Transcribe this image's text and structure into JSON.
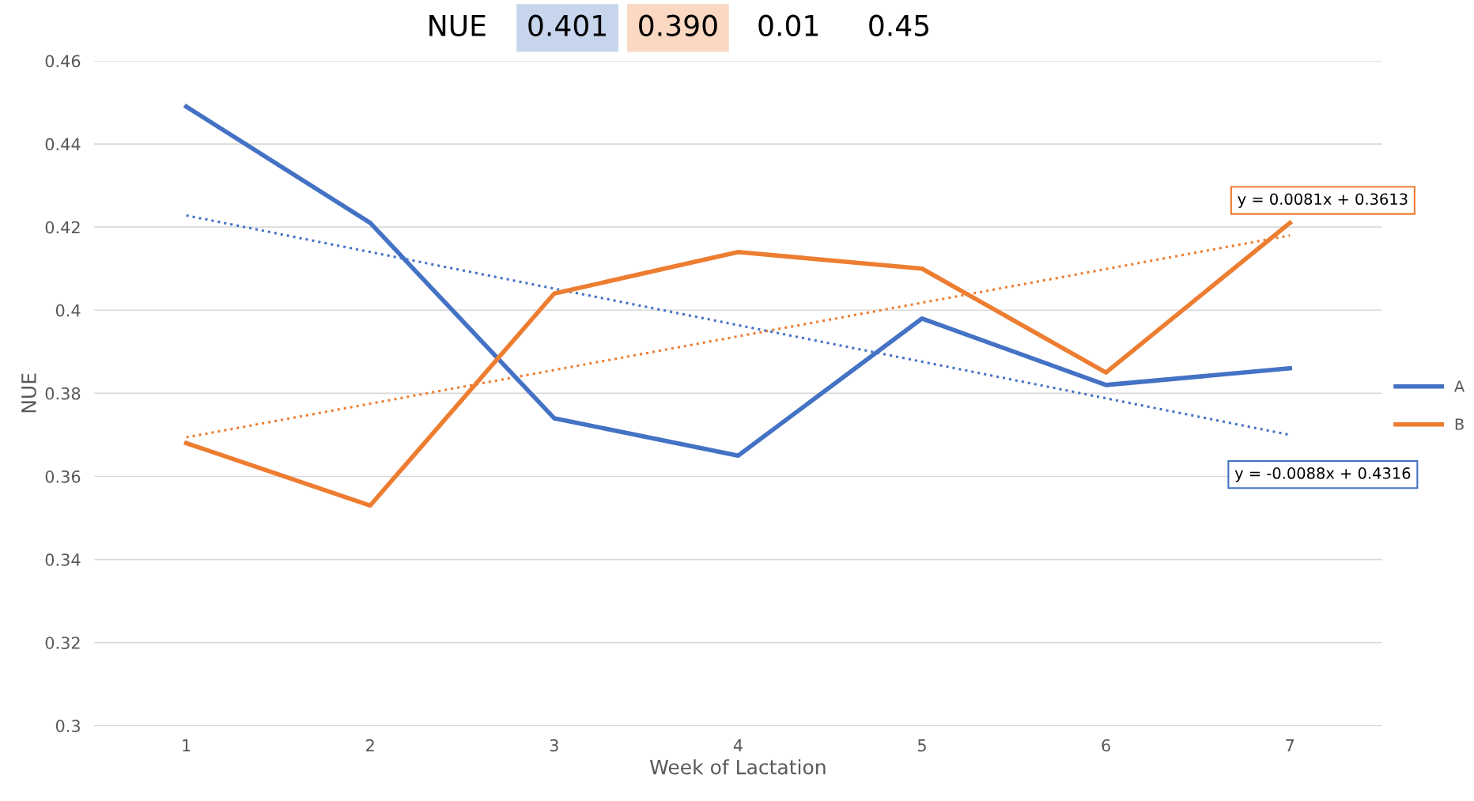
{
  "chart_data": {
    "type": "line",
    "xlabel": "Week of Lactation",
    "ylabel": "NUE",
    "x": [
      1,
      2,
      3,
      4,
      5,
      6,
      7
    ],
    "series": [
      {
        "name": "A",
        "color": "#4472c4",
        "values": [
          0.449,
          0.421,
          0.374,
          0.365,
          0.398,
          0.382,
          0.386
        ]
      },
      {
        "name": "B",
        "color": "#ed7d31",
        "values": [
          0.368,
          0.353,
          0.404,
          0.414,
          0.41,
          0.385,
          0.421
        ]
      },
      {
        "color": "#ed7d31",
        "values": [
          0.3694,
          0.3775,
          0.3856,
          0.3937,
          0.4018,
          0.4099,
          0.418
        ],
        "line_style": "dotted"
      },
      {
        "color": "#4472c4",
        "values": [
          0.4228,
          0.414,
          0.4052,
          0.3964,
          0.3876,
          0.3788,
          0.37
        ],
        "line_style": "dotted"
      }
    ],
    "xlim": [
      0.5,
      7.5
    ],
    "xticks": [
      1,
      2,
      3,
      4,
      5,
      6,
      7
    ],
    "ylim": [
      0.3,
      0.46
    ],
    "yticks": [
      {
        "value": 0.3,
        "label": "0.3"
      },
      0.32,
      0.34,
      0.36,
      0.38,
      {
        "value": 0.4,
        "label": "0.4"
      },
      0.42,
      0.44,
      0.46
    ],
    "grid": "y",
    "legend": "right",
    "marker": "none",
    "line_style": "solid",
    "annotations": [
      {
        "text": "y = 0.0081x + 0.3613",
        "x": 7,
        "y": 0.418
      },
      {
        "text": "y = -0.0088x + 0.4316",
        "x": 7,
        "y": 0.37
      },
      "NUE",
      "0.401",
      "0.390",
      "0.01",
      "0.45"
    ]
  }
}
